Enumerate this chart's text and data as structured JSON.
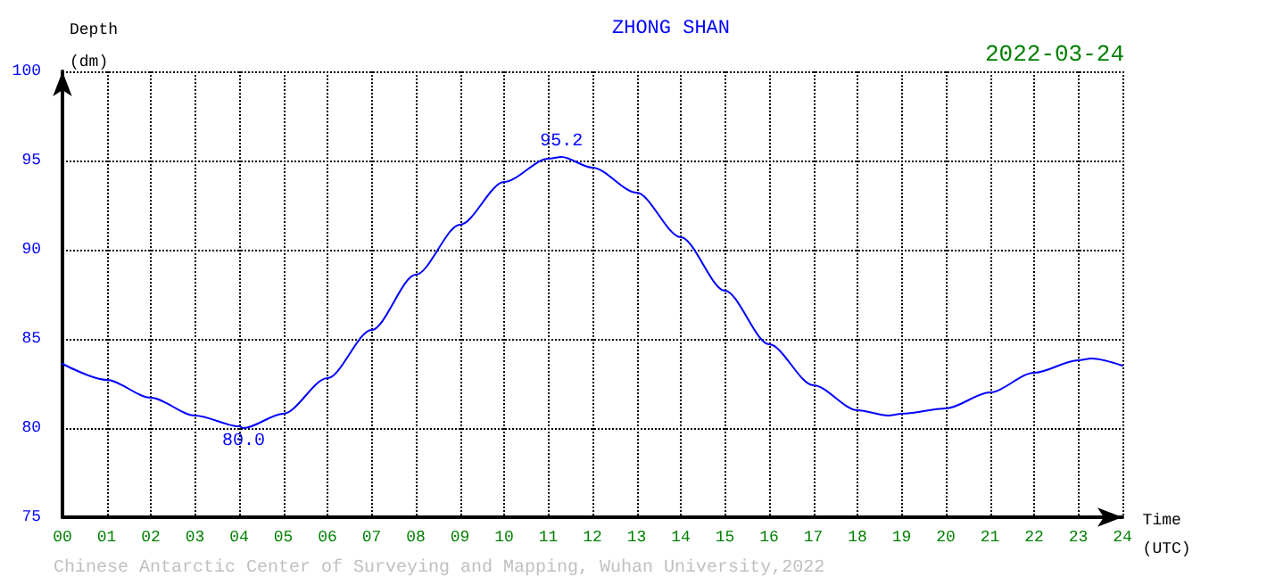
{
  "chart_data": {
    "type": "line",
    "title": "ZHONG SHAN",
    "xlabel": "Time (UTC)",
    "ylabel": "Depth (dm)",
    "x": [
      0,
      1,
      2,
      3,
      4,
      4.1,
      5,
      6,
      7,
      8,
      9,
      10,
      11,
      11.3,
      12,
      13,
      14,
      15,
      16,
      17,
      18,
      18.7,
      19,
      20,
      21,
      22,
      23,
      23.3,
      24
    ],
    "series": [
      {
        "color": "#0000ff",
        "values": [
          83.6,
          82.7,
          81.7,
          80.7,
          80.1,
          80.0,
          80.8,
          82.8,
          85.5,
          88.6,
          91.4,
          93.8,
          95.1,
          95.2,
          94.6,
          93.2,
          90.7,
          87.7,
          84.7,
          82.4,
          81.0,
          80.7,
          80.8,
          81.1,
          82.0,
          83.1,
          83.8,
          83.9,
          83.5
        ]
      }
    ],
    "xlim": [
      0,
      24
    ],
    "xticks": [
      {
        "value": 0,
        "label": "00"
      },
      {
        "value": 1,
        "label": "01"
      },
      {
        "value": 2,
        "label": "02"
      },
      {
        "value": 3,
        "label": "03"
      },
      {
        "value": 4,
        "label": "04"
      },
      {
        "value": 5,
        "label": "05"
      },
      {
        "value": 6,
        "label": "06"
      },
      {
        "value": 7,
        "label": "07"
      },
      {
        "value": 8,
        "label": "08"
      },
      {
        "value": 9,
        "label": "09"
      },
      10,
      11,
      12,
      13,
      14,
      15,
      16,
      17,
      18,
      19,
      20,
      21,
      22,
      23,
      24
    ],
    "ylim": [
      75,
      100
    ],
    "yticks": [
      75,
      80,
      85,
      90,
      95,
      100
    ],
    "annotations": [
      {
        "text": "95.2",
        "x": 11.3,
        "y": 95.2
      },
      {
        "text": "80.0",
        "x": 4.1,
        "y": 80.0
      },
      "2022-03-24",
      "Chinese Antarctic Center of Surveying and Mapping, Wuhan University,2022"
    ],
    "grid": true,
    "marker": "none",
    "line_style": "solid"
  }
}
